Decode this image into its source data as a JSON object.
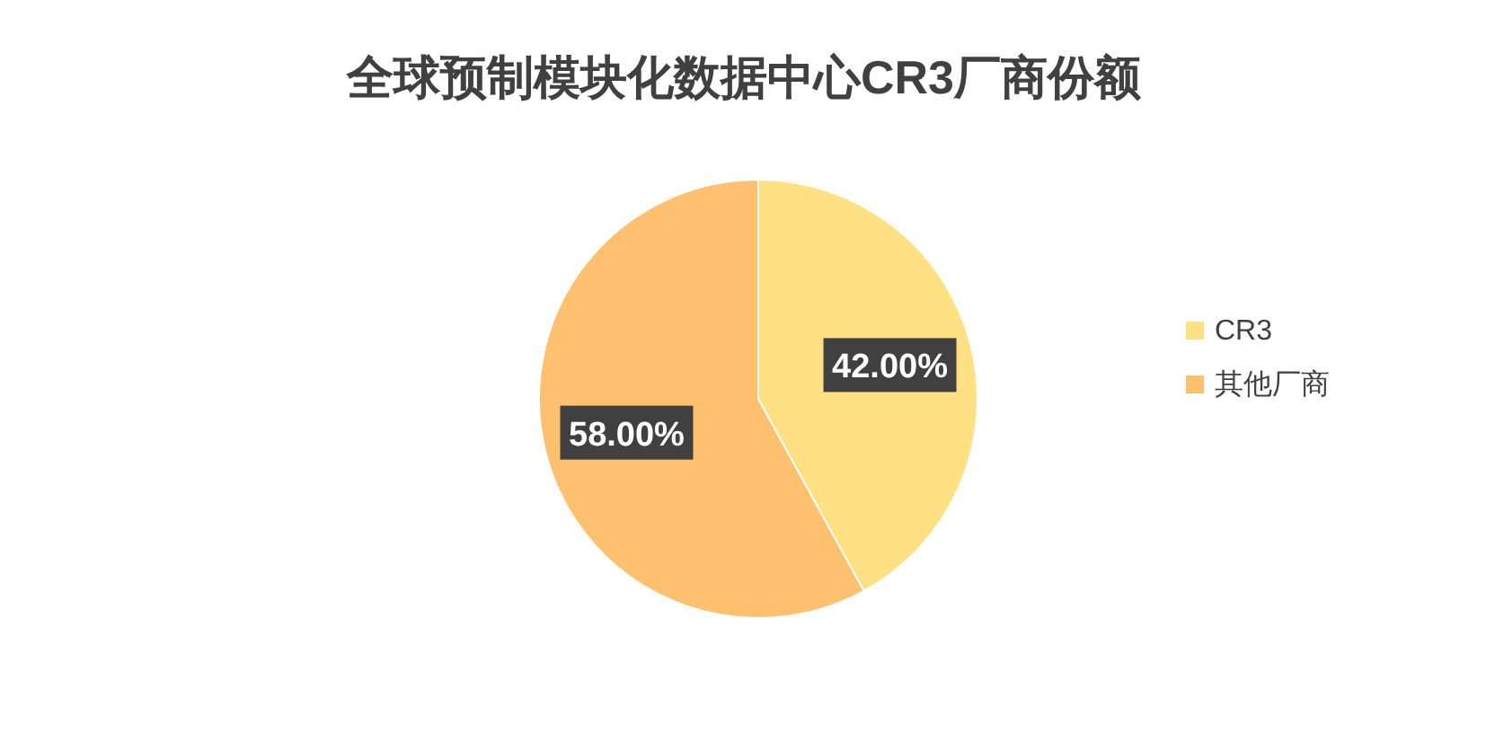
{
  "chart_data": {
    "type": "pie",
    "title": "全球预制模块化数据中心CR3厂商份额",
    "categories": [
      "CR3",
      "其他厂商"
    ],
    "values": [
      42,
      58
    ],
    "colors": [
      "#ffe184",
      "#ffc170"
    ],
    "value_labels": [
      "42.00%",
      "58.00%"
    ],
    "legend": "right"
  }
}
